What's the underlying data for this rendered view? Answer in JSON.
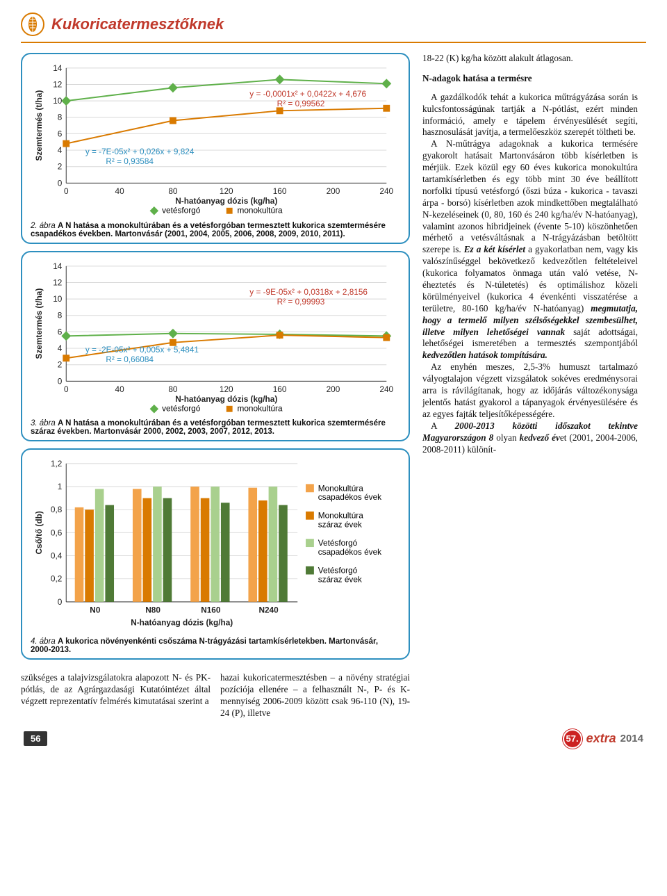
{
  "header": {
    "title": "Kukoricatermesztőknek"
  },
  "figure2": {
    "type": "scatter-with-fit",
    "xlabel": "N-hatóanyag dózis (kg/ha)",
    "ylabel": "Szemtermés (t/ha)",
    "xlim": [
      0,
      240
    ],
    "xtick_step": 40,
    "ylim": [
      0,
      14
    ],
    "ytick_step": 2,
    "series": [
      {
        "name": "vetésforgó",
        "color": "#5fb04a",
        "marker": "diamond",
        "points": [
          [
            0,
            10.0
          ],
          [
            80,
            11.6
          ],
          [
            160,
            12.6
          ],
          [
            240,
            12.1
          ]
        ],
        "eq": "y = -7E-05x² + 0,026x + 9,824",
        "r2": "R² = 0,93584",
        "eq_color": "#2d8fbf"
      },
      {
        "name": "monokultúra",
        "color": "#d97a00",
        "marker": "square",
        "points": [
          [
            0,
            4.8
          ],
          [
            80,
            7.6
          ],
          [
            160,
            8.8
          ],
          [
            240,
            9.1
          ]
        ],
        "eq": "y = -0,0001x² + 0,0422x + 4,676",
        "r2": "R² = 0,99562",
        "eq_color": "#c0392b"
      }
    ],
    "caption_num": "2. ábra",
    "caption_bold": "A N hatása a monokultúrában és a vetésforgóban termesztett kukorica szemtermésére csapadékos években. Martonvásár (2001, 2004, 2005, 2006, 2008, 2009, 2010, 2011)."
  },
  "figure3": {
    "type": "scatter-with-fit",
    "xlabel": "N-hatóanyag dózis (kg/ha)",
    "ylabel": "Szemtermés (t/ha)",
    "xlim": [
      0,
      240
    ],
    "xtick_step": 40,
    "ylim": [
      0,
      14
    ],
    "ytick_step": 2,
    "series": [
      {
        "name": "vetésforgó",
        "color": "#5fb04a",
        "marker": "diamond",
        "points": [
          [
            0,
            5.5
          ],
          [
            80,
            5.8
          ],
          [
            160,
            5.7
          ],
          [
            240,
            5.5
          ]
        ],
        "eq": "y = -2E-05x² + 0,005x + 5,4841",
        "r2": "R² = 0,66084",
        "eq_color": "#2d8fbf"
      },
      {
        "name": "monokultúra",
        "color": "#d97a00",
        "marker": "square",
        "points": [
          [
            0,
            2.8
          ],
          [
            80,
            4.7
          ],
          [
            160,
            5.6
          ],
          [
            240,
            5.3
          ]
        ],
        "eq": "y = -9E-05x² + 0,0318x + 2,8156",
        "r2": "R² = 0,99993",
        "eq_color": "#c0392b"
      }
    ],
    "caption_num": "3. ábra",
    "caption_bold": "A N hatása a monokultúrában és a vetésforgóban termesztett kukorica szemtermésére száraz években. Martonvásár 2000, 2002, 2003, 2007, 2012, 2013."
  },
  "figure4": {
    "type": "grouped-bar",
    "xlabel": "N-hatóanyag dózis (kg/ha)",
    "ylabel": "Cső/tő (db)",
    "categories": [
      "N0",
      "N80",
      "N160",
      "N240"
    ],
    "ylim": [
      0,
      1.2
    ],
    "ytick_step": 0.2,
    "series": [
      {
        "name": "Monokultúra csapadékos évek",
        "color": "#f3a34a",
        "values": [
          0.82,
          0.98,
          1.0,
          0.99
        ]
      },
      {
        "name": "Monokultúra száraz évek",
        "color": "#d97a00",
        "values": [
          0.8,
          0.9,
          0.9,
          0.88
        ]
      },
      {
        "name": "Vetésforgó csapadékos évek",
        "color": "#a9d08e",
        "values": [
          0.98,
          1.0,
          1.0,
          1.0
        ]
      },
      {
        "name": "Vetésforgó száraz évek",
        "color": "#4f7a36",
        "values": [
          0.84,
          0.9,
          0.86,
          0.84
        ]
      }
    ],
    "caption_num": "4. ábra",
    "caption_bold": "A kukorica növényenkénti csőszáma N-trágyázási tartamkísérletekben. Martonvásár, 2000-2013."
  },
  "bottom_cols": {
    "left": "szükséges a talajvizsgálatokra alapozott N- és PK-pótlás, de az Agrárgazdasági Kutatóintézet által végzett reprezentatív felmérés kimutatásai szerint a",
    "right": "hazai kukoricatermesztésben – a növény stratégiai pozíciója ellenére – a felhasznált N-, P- és K-mennyiség 2006-2009 között csak 96-110 (N), 19-24 (P), illetve"
  },
  "right_text": {
    "p1": "18-22 (K) kg/ha között alakult átlagosan.",
    "h2": "N-adagok hatása a termésre",
    "p2": "A gazdálkodók tehát a kukorica műtrágyázása során is kulcsfontosságúnak tartják a N-pótlást, ezért minden információ, amely e tápelem érvényesülését segíti, hasznosulását javítja, a termelőeszköz szerepét töltheti be.",
    "p3a": "A N-műtrágya adagoknak a kukorica termésére gyakorolt hatásait Martonvásáron több kísérletben is mérjük. Ezek közül egy 60 éves kukorica monokultúra tartamkísérletben és egy több mint 30 éve beállított norfolki típusú vetésforgó (őszi búza - kukorica - tavaszi árpa - borsó) kísérletben azok mindkettőben megtalálható N-kezeléseinek (0, 80, 160 és 240 kg/ha/év N-hatóanyag), valamint azonos hibridjeinek (évente 5-10) köszönhetően mérhető a vetésváltásnak a N-trágyázásban betöltött szerepe is. ",
    "p3b": "Ez a két kísérlet",
    "p3c": " a gyakorlatban nem, vagy kis valószínűséggel bekövetkező kedvezőtlen feltételeivel (kukorica folyamatos önmaga után való vetése, N-éheztetés és N-túletetés) és optimálishoz közeli körülményeivel (kukorica 4 évenkénti visszatérése a területre, 80-160 kg/ha/év N-hatóanyag) ",
    "p3d": "megmutatja, hogy a termelő milyen szélső­ségekkel szembesülhet, illetve milyen lehetőségei vannak",
    "p3e": " saját adottságai, lehetőségei ismeretében a termesztés szempontjából ",
    "p3f": "kedvezőtlen hatások tompítására.",
    "p4": "Az enyhén meszes, 2,5-3% humuszt tartalmazó vályogtalajon végzett vizsgálatok sokéves eredménysorai arra is rávilágítanak, hogy az időjárás változékonysága jelentős hatást gyakorol a tápanyagok érvényesülésére és az egyes fajták teljesítőképességére.",
    "p5a": "A ",
    "p5b": "2000-2013 közötti időszakot tekintve Magyarországon 8",
    "p5c": " olyan ",
    "p5d": "kedvező év",
    "p5e": "et (2001, 2004-2006, 2008-2011) különít-"
  },
  "footer": {
    "page": "56",
    "issue": "57.",
    "brand": "extra",
    "year": "2014"
  },
  "grid_color": "#d8d8d8"
}
